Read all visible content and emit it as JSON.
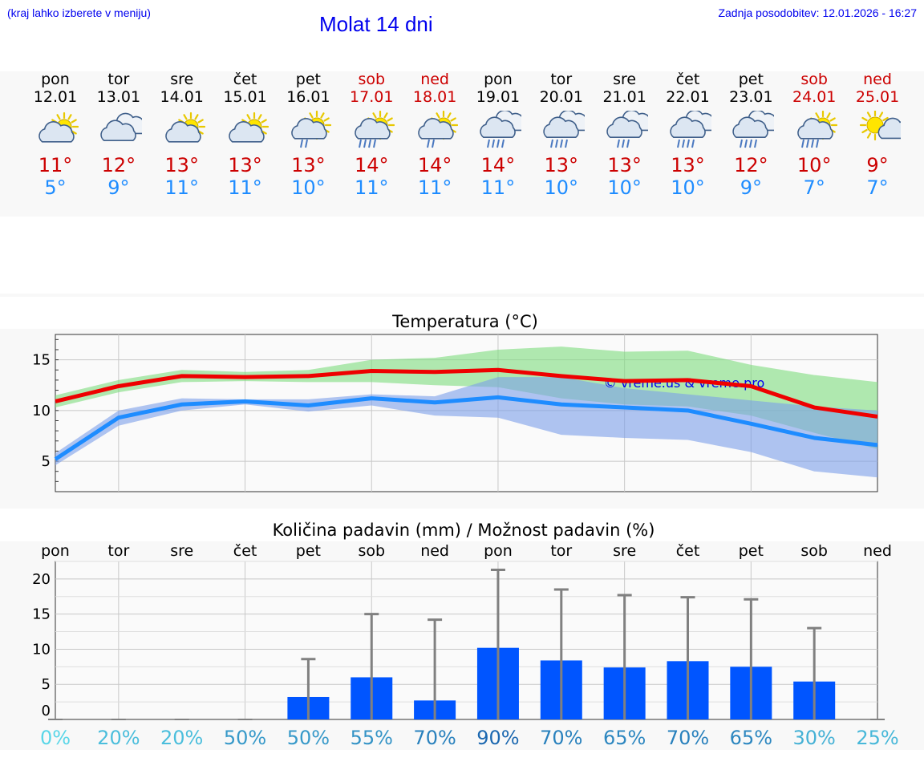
{
  "header": {
    "menu_hint": "(kraj lahko izberete v meniju)",
    "title": "Molat 14 dni",
    "last_update": "Zadnja posodobitev: 12.01.2026 - 16:27"
  },
  "colors": {
    "weekday": "#000000",
    "weekend": "#cc0000",
    "tmax": "#cc0000",
    "tmin": "#1e8cff",
    "bar": "#0055ff"
  },
  "days": [
    {
      "name": "pon",
      "date": "12.01",
      "weekend": false,
      "icon": "partly-cloudy-icon",
      "tmax": "11°",
      "tmin": "5°"
    },
    {
      "name": "tor",
      "date": "13.01",
      "weekend": false,
      "icon": "cloudy-icon",
      "tmax": "12°",
      "tmin": "9°"
    },
    {
      "name": "sre",
      "date": "14.01",
      "weekend": false,
      "icon": "partly-cloudy-icon",
      "tmax": "13°",
      "tmin": "11°"
    },
    {
      "name": "čet",
      "date": "15.01",
      "weekend": false,
      "icon": "partly-cloudy-icon",
      "tmax": "13°",
      "tmin": "11°"
    },
    {
      "name": "pet",
      "date": "16.01",
      "weekend": false,
      "icon": "sun-rain-icon",
      "tmax": "13°",
      "tmin": "10°"
    },
    {
      "name": "sob",
      "date": "17.01",
      "weekend": true,
      "icon": "sun-heavy-rain-icon",
      "tmax": "14°",
      "tmin": "11°"
    },
    {
      "name": "ned",
      "date": "18.01",
      "weekend": true,
      "icon": "sun-rain-icon",
      "tmax": "14°",
      "tmin": "11°"
    },
    {
      "name": "pon",
      "date": "19.01",
      "weekend": false,
      "icon": "heavy-rain-icon",
      "tmax": "14°",
      "tmin": "11°"
    },
    {
      "name": "tor",
      "date": "20.01",
      "weekend": false,
      "icon": "heavy-rain-icon",
      "tmax": "13°",
      "tmin": "10°"
    },
    {
      "name": "sre",
      "date": "21.01",
      "weekend": false,
      "icon": "rain-icon",
      "tmax": "13°",
      "tmin": "10°"
    },
    {
      "name": "čet",
      "date": "22.01",
      "weekend": false,
      "icon": "heavy-rain-icon",
      "tmax": "13°",
      "tmin": "10°"
    },
    {
      "name": "pet",
      "date": "23.01",
      "weekend": false,
      "icon": "heavy-rain-icon",
      "tmax": "12°",
      "tmin": "9°"
    },
    {
      "name": "sob",
      "date": "24.01",
      "weekend": true,
      "icon": "sun-heavy-rain-icon",
      "tmax": "10°",
      "tmin": "7°"
    },
    {
      "name": "ned",
      "date": "25.01",
      "weekend": true,
      "icon": "sunny-cloud-icon",
      "tmax": "9°",
      "tmin": "7°"
    }
  ],
  "chart_data": [
    {
      "type": "line",
      "title": "Temperatura (°C)",
      "ylabel": "°C",
      "x_days": 14,
      "ylim": [
        2,
        17.5
      ],
      "yticks": [
        5,
        10,
        15
      ],
      "watermark": "© vreme.us & vreme.pro",
      "series": [
        {
          "name": "max",
          "color": "#ee0000",
          "values": [
            10.9,
            12.4,
            13.4,
            13.3,
            13.4,
            13.9,
            13.8,
            14.0,
            13.4,
            12.9,
            13.0,
            12.4,
            10.3,
            9.4
          ]
        },
        {
          "name": "min",
          "color": "#1e8cff",
          "values": [
            5.2,
            9.3,
            10.6,
            10.9,
            10.5,
            11.2,
            10.8,
            11.3,
            10.6,
            10.3,
            10.0,
            8.7,
            7.3,
            6.6
          ]
        }
      ],
      "bands": [
        {
          "name": "max-range",
          "color": "#7ddc7d",
          "upper": [
            11.5,
            13.0,
            14.0,
            13.8,
            14.0,
            15.0,
            15.2,
            16.0,
            16.3,
            15.8,
            15.9,
            14.5,
            13.5,
            12.8
          ],
          "lower": [
            10.3,
            11.8,
            12.8,
            12.9,
            12.8,
            12.8,
            12.5,
            12.3,
            11.2,
            10.6,
            10.4,
            9.5,
            7.8,
            6.2
          ]
        },
        {
          "name": "min-range",
          "color": "#7b9fea",
          "upper": [
            5.8,
            10.0,
            11.2,
            11.1,
            11.1,
            11.6,
            11.4,
            13.3,
            13.3,
            12.2,
            11.6,
            11.0,
            10.4,
            10.0
          ],
          "lower": [
            4.6,
            8.5,
            10.0,
            10.6,
            9.9,
            10.5,
            9.5,
            9.3,
            7.6,
            7.3,
            7.1,
            5.9,
            4.0,
            3.4
          ]
        }
      ]
    },
    {
      "type": "bar",
      "title": "Količina padavin (mm) / Možnost padavin (%)",
      "categories": [
        "pon",
        "tor",
        "sre",
        "čet",
        "pet",
        "sob",
        "ned",
        "pon",
        "tor",
        "sre",
        "čet",
        "pet",
        "sob",
        "ned"
      ],
      "ylim": [
        0,
        22.5
      ],
      "yticks": [
        0,
        5,
        10,
        15,
        20
      ],
      "values": [
        0,
        0,
        0,
        0,
        3.2,
        6.0,
        2.7,
        10.2,
        8.4,
        7.4,
        8.3,
        7.5,
        5.4,
        0
      ],
      "error_max": [
        0,
        0,
        0,
        0,
        8.6,
        15.0,
        14.2,
        21.3,
        18.5,
        17.7,
        17.4,
        17.1,
        13.0,
        0
      ],
      "probabilities": [
        "0%",
        "20%",
        "20%",
        "50%",
        "50%",
        "55%",
        "70%",
        "90%",
        "70%",
        "65%",
        "70%",
        "65%",
        "30%",
        "25%"
      ]
    }
  ]
}
